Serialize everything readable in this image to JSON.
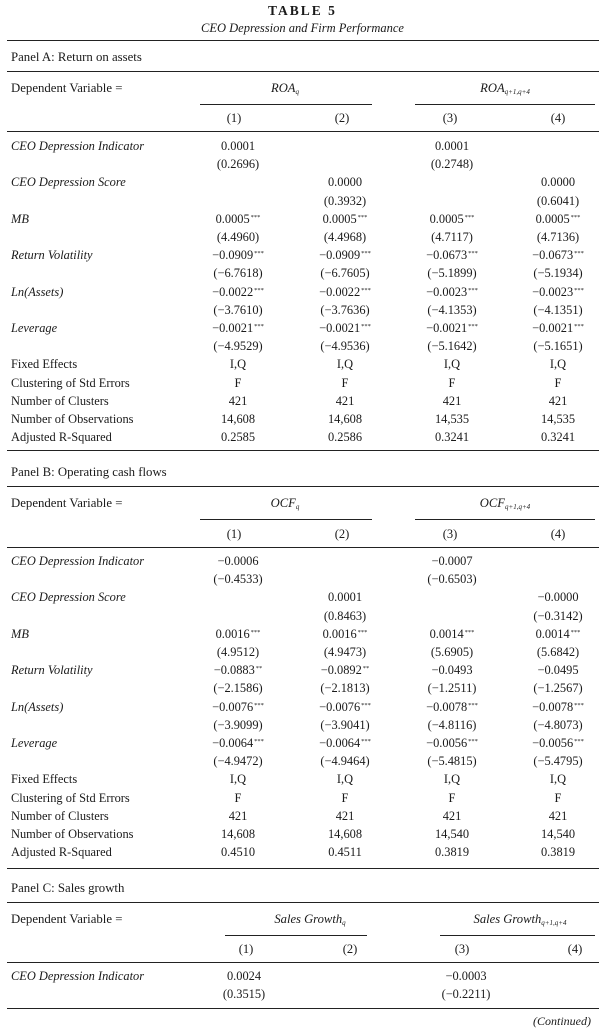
{
  "table": {
    "title": "TABLE 5",
    "subtitle": "CEO Depression and Firm Performance",
    "continued": "(Continued)"
  },
  "labels": {
    "dependent_variable": "Dependent Variable ="
  },
  "panelA": {
    "title": "Panel A: Return on assets",
    "dep1": "ROA",
    "dep1_sub": "q",
    "dep2": "ROA",
    "dep2_sub": "q+1,q+4",
    "cols": [
      "(1)",
      "(2)",
      "(3)",
      "(4)"
    ],
    "rows": [
      {
        "label": "CEO Depression Indicator",
        "italic": true,
        "cells": [
          "0.0001",
          "",
          "0.0001",
          ""
        ]
      },
      {
        "label": "",
        "italic": false,
        "cells": [
          "(0.2696)",
          "",
          "(0.2748)",
          ""
        ]
      },
      {
        "label": "CEO Depression Score",
        "italic": true,
        "cells": [
          "",
          "0.0000",
          "",
          "0.0000"
        ]
      },
      {
        "label": "",
        "italic": false,
        "cells": [
          "",
          "(0.3932)",
          "",
          "(0.6041)"
        ]
      },
      {
        "label": "MB",
        "italic": true,
        "cells": [
          "0.0005",
          "0.0005",
          "0.0005",
          "0.0005"
        ],
        "stars": [
          "***",
          "***",
          "***",
          "***"
        ]
      },
      {
        "label": "",
        "italic": false,
        "cells": [
          "(4.4960)",
          "(4.4968)",
          "(4.7117)",
          "(4.7136)"
        ]
      },
      {
        "label": "Return Volatility",
        "italic": true,
        "cells": [
          "−0.0909",
          "−0.0909",
          "−0.0673",
          "−0.0673"
        ],
        "stars": [
          "***",
          "***",
          "***",
          "***"
        ]
      },
      {
        "label": "",
        "italic": false,
        "cells": [
          "(−6.7618)",
          "(−6.7605)",
          "(−5.1899)",
          "(−5.1934)"
        ]
      },
      {
        "label": "Ln(Assets)",
        "italic": true,
        "cells": [
          "−0.0022",
          "−0.0022",
          "−0.0023",
          "−0.0023"
        ],
        "stars": [
          "***",
          "***",
          "***",
          "***"
        ]
      },
      {
        "label": "",
        "italic": false,
        "cells": [
          "(−3.7610)",
          "(−3.7636)",
          "(−4.1353)",
          "(−4.1351)"
        ]
      },
      {
        "label": "Leverage",
        "italic": true,
        "cells": [
          "−0.0021",
          "−0.0021",
          "−0.0021",
          "−0.0021"
        ],
        "stars": [
          "***",
          "***",
          "***",
          "***"
        ]
      },
      {
        "label": "",
        "italic": false,
        "cells": [
          "(−4.9529)",
          "(−4.9536)",
          "(−5.1642)",
          "(−5.1651)"
        ]
      },
      {
        "label": "Fixed Effects",
        "italic": false,
        "cells": [
          "I,Q",
          "I,Q",
          "I,Q",
          "I,Q"
        ]
      },
      {
        "label": "Clustering of Std Errors",
        "italic": false,
        "cells": [
          "F",
          "F",
          "F",
          "F"
        ]
      },
      {
        "label": "Number of Clusters",
        "italic": false,
        "cells": [
          "421",
          "421",
          "421",
          "421"
        ]
      },
      {
        "label": "Number of Observations",
        "italic": false,
        "cells": [
          "14,608",
          "14,608",
          "14,535",
          "14,535"
        ]
      },
      {
        "label": "Adjusted R-Squared",
        "italic": false,
        "cells": [
          "0.2585",
          "0.2586",
          "0.3241",
          "0.3241"
        ]
      }
    ]
  },
  "panelB": {
    "title": "Panel B: Operating cash flows",
    "dep1": "OCF",
    "dep1_sub": "q",
    "dep2": "OCF",
    "dep2_sub": "q+1,q+4",
    "cols": [
      "(1)",
      "(2)",
      "(3)",
      "(4)"
    ],
    "rows": [
      {
        "label": "CEO Depression Indicator",
        "italic": true,
        "cells": [
          "−0.0006",
          "",
          "−0.0007",
          ""
        ]
      },
      {
        "label": "",
        "italic": false,
        "cells": [
          "(−0.4533)",
          "",
          "(−0.6503)",
          ""
        ]
      },
      {
        "label": "CEO Depression Score",
        "italic": true,
        "cells": [
          "",
          "0.0001",
          "",
          "−0.0000"
        ]
      },
      {
        "label": "",
        "italic": false,
        "cells": [
          "",
          "(0.8463)",
          "",
          "(−0.3142)"
        ]
      },
      {
        "label": "MB",
        "italic": true,
        "cells": [
          "0.0016",
          "0.0016",
          "0.0014",
          "0.0014"
        ],
        "stars": [
          "***",
          "***",
          "***",
          "***"
        ]
      },
      {
        "label": "",
        "italic": false,
        "cells": [
          "(4.9512)",
          "(4.9473)",
          "(5.6905)",
          "(5.6842)"
        ]
      },
      {
        "label": "Return Volatility",
        "italic": true,
        "cells": [
          "−0.0883",
          "−0.0892",
          "−0.0493",
          "−0.0495"
        ],
        "stars": [
          "**",
          "**",
          "",
          ""
        ]
      },
      {
        "label": "",
        "italic": false,
        "cells": [
          "(−2.1586)",
          "(−2.1813)",
          "(−1.2511)",
          "(−1.2567)"
        ]
      },
      {
        "label": "Ln(Assets)",
        "italic": true,
        "cells": [
          "−0.0076",
          "−0.0076",
          "−0.0078",
          "−0.0078"
        ],
        "stars": [
          "***",
          "***",
          "***",
          "***"
        ]
      },
      {
        "label": "",
        "italic": false,
        "cells": [
          "(−3.9099)",
          "(−3.9041)",
          "(−4.8116)",
          "(−4.8073)"
        ]
      },
      {
        "label": "Leverage",
        "italic": true,
        "cells": [
          "−0.0064",
          "−0.0064",
          "−0.0056",
          "−0.0056"
        ],
        "stars": [
          "***",
          "***",
          "***",
          "***"
        ]
      },
      {
        "label": "",
        "italic": false,
        "cells": [
          "(−4.9472)",
          "(−4.9464)",
          "(−5.4815)",
          "(−5.4795)"
        ]
      },
      {
        "label": "Fixed Effects",
        "italic": false,
        "cells": [
          "I,Q",
          "I,Q",
          "I,Q",
          "I,Q"
        ]
      },
      {
        "label": "Clustering of Std Errors",
        "italic": false,
        "cells": [
          "F",
          "F",
          "F",
          "F"
        ]
      },
      {
        "label": "Number of Clusters",
        "italic": false,
        "cells": [
          "421",
          "421",
          "421",
          "421"
        ]
      },
      {
        "label": "Number of Observations",
        "italic": false,
        "cells": [
          "14,608",
          "14,608",
          "14,540",
          "14,540"
        ]
      },
      {
        "label": "Adjusted R-Squared",
        "italic": false,
        "cells": [
          "0.4510",
          "0.4511",
          "0.3819",
          "0.3819"
        ]
      }
    ]
  },
  "panelC": {
    "title": "Panel C: Sales growth",
    "dep1": "Sales Growth",
    "dep1_sub": "q",
    "dep2": "Sales Growth",
    "dep2_sub": "q+1,q+4",
    "cols": [
      "(1)",
      "(2)",
      "(3)",
      "(4)"
    ],
    "rows": [
      {
        "label": "CEO Depression Indicator",
        "italic": true,
        "cells": [
          "0.0024",
          "",
          "−0.0003",
          ""
        ]
      },
      {
        "label": "",
        "italic": false,
        "cells": [
          "(0.3515)",
          "",
          "(−0.2211)",
          ""
        ]
      }
    ]
  }
}
